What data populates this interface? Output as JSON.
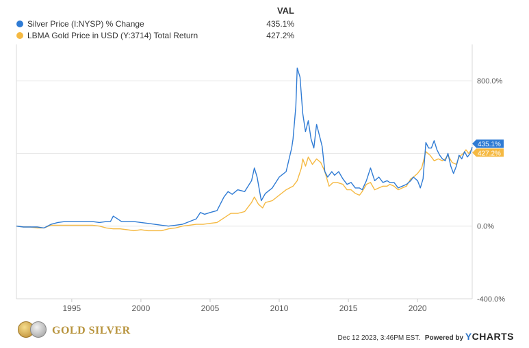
{
  "legend": {
    "header": "VAL",
    "items": [
      {
        "name": "Silver Price (I:NYSP) % Change",
        "value": "435.1%",
        "color": "#2f7bd4"
      },
      {
        "name": "LBMA Gold Price in USD (Y:3714) Total Return",
        "value": "427.2%",
        "color": "#f5b942"
      }
    ]
  },
  "chart_data": {
    "type": "line",
    "x_range": [
      1991.0,
      2023.95
    ],
    "y_range": [
      -400,
      1000
    ],
    "x_ticks": [
      {
        "value": 1995,
        "label": "1995"
      },
      {
        "value": 2000,
        "label": "2000"
      },
      {
        "value": 2005,
        "label": "2005"
      },
      {
        "value": 2010,
        "label": "2010"
      },
      {
        "value": 2015,
        "label": "2015"
      },
      {
        "value": 2020,
        "label": "2020"
      }
    ],
    "y_ticks": [
      {
        "value": 800,
        "label": "800.0%"
      },
      {
        "value": 400,
        "label": ""
      },
      {
        "value": 0,
        "label": "0.0%"
      },
      {
        "value": -400,
        "label": "-400.0%"
      }
    ],
    "grid": "horizontal",
    "series": [
      {
        "name": "Silver Price (I:NYSP) % Change",
        "color": "#2f7bd4",
        "end_label": "435.1%",
        "points": [
          [
            1991.0,
            0
          ],
          [
            1991.5,
            -5
          ],
          [
            1992.0,
            -5
          ],
          [
            1992.5,
            -5
          ],
          [
            1993.0,
            -10
          ],
          [
            1993.5,
            10
          ],
          [
            1994.0,
            20
          ],
          [
            1994.5,
            25
          ],
          [
            1995.0,
            25
          ],
          [
            1995.5,
            25
          ],
          [
            1996.0,
            25
          ],
          [
            1996.5,
            25
          ],
          [
            1997.0,
            20
          ],
          [
            1997.5,
            25
          ],
          [
            1997.8,
            25
          ],
          [
            1998.0,
            55
          ],
          [
            1998.3,
            40
          ],
          [
            1998.6,
            25
          ],
          [
            1999.0,
            25
          ],
          [
            1999.5,
            25
          ],
          [
            2000.0,
            20
          ],
          [
            2000.5,
            15
          ],
          [
            2001.0,
            10
          ],
          [
            2001.5,
            5
          ],
          [
            2002.0,
            0
          ],
          [
            2002.5,
            5
          ],
          [
            2003.0,
            10
          ],
          [
            2003.5,
            25
          ],
          [
            2004.0,
            40
          ],
          [
            2004.3,
            75
          ],
          [
            2004.6,
            65
          ],
          [
            2005.0,
            75
          ],
          [
            2005.5,
            85
          ],
          [
            2006.0,
            160
          ],
          [
            2006.3,
            190
          ],
          [
            2006.6,
            175
          ],
          [
            2007.0,
            200
          ],
          [
            2007.5,
            190
          ],
          [
            2008.0,
            250
          ],
          [
            2008.2,
            320
          ],
          [
            2008.4,
            270
          ],
          [
            2008.7,
            140
          ],
          [
            2009.0,
            180
          ],
          [
            2009.5,
            210
          ],
          [
            2010.0,
            270
          ],
          [
            2010.5,
            300
          ],
          [
            2010.9,
            430
          ],
          [
            2011.0,
            480
          ],
          [
            2011.2,
            660
          ],
          [
            2011.3,
            870
          ],
          [
            2011.5,
            820
          ],
          [
            2011.7,
            620
          ],
          [
            2011.9,
            520
          ],
          [
            2012.1,
            580
          ],
          [
            2012.3,
            480
          ],
          [
            2012.5,
            430
          ],
          [
            2012.7,
            560
          ],
          [
            2012.9,
            500
          ],
          [
            2013.1,
            440
          ],
          [
            2013.3,
            300
          ],
          [
            2013.5,
            270
          ],
          [
            2013.8,
            300
          ],
          [
            2014.0,
            280
          ],
          [
            2014.3,
            300
          ],
          [
            2014.6,
            260
          ],
          [
            2014.9,
            230
          ],
          [
            2015.2,
            240
          ],
          [
            2015.5,
            210
          ],
          [
            2015.8,
            210
          ],
          [
            2016.0,
            200
          ],
          [
            2016.3,
            250
          ],
          [
            2016.6,
            320
          ],
          [
            2016.9,
            250
          ],
          [
            2017.2,
            270
          ],
          [
            2017.5,
            240
          ],
          [
            2017.8,
            250
          ],
          [
            2018.0,
            240
          ],
          [
            2018.3,
            240
          ],
          [
            2018.6,
            210
          ],
          [
            2018.9,
            220
          ],
          [
            2019.2,
            230
          ],
          [
            2019.5,
            250
          ],
          [
            2019.7,
            270
          ],
          [
            2020.0,
            250
          ],
          [
            2020.2,
            210
          ],
          [
            2020.4,
            260
          ],
          [
            2020.6,
            460
          ],
          [
            2020.8,
            430
          ],
          [
            2021.0,
            430
          ],
          [
            2021.2,
            470
          ],
          [
            2021.4,
            420
          ],
          [
            2021.6,
            390
          ],
          [
            2021.8,
            370
          ],
          [
            2022.0,
            360
          ],
          [
            2022.2,
            400
          ],
          [
            2022.4,
            330
          ],
          [
            2022.6,
            290
          ],
          [
            2022.8,
            330
          ],
          [
            2023.0,
            390
          ],
          [
            2023.2,
            370
          ],
          [
            2023.4,
            410
          ],
          [
            2023.6,
            380
          ],
          [
            2023.8,
            400
          ],
          [
            2023.95,
            435
          ]
        ]
      },
      {
        "name": "LBMA Gold Price in USD (Y:3714) Total Return",
        "color": "#f5b942",
        "end_label": "427.2%",
        "points": [
          [
            1991.0,
            0
          ],
          [
            1991.5,
            -5
          ],
          [
            1992.0,
            -5
          ],
          [
            1992.5,
            -10
          ],
          [
            1993.0,
            -10
          ],
          [
            1993.5,
            5
          ],
          [
            1994.0,
            5
          ],
          [
            1994.5,
            5
          ],
          [
            1995.0,
            5
          ],
          [
            1995.5,
            5
          ],
          [
            1996.0,
            5
          ],
          [
            1996.5,
            5
          ],
          [
            1997.0,
            0
          ],
          [
            1997.5,
            -10
          ],
          [
            1998.0,
            -15
          ],
          [
            1998.5,
            -15
          ],
          [
            1999.0,
            -20
          ],
          [
            1999.5,
            -25
          ],
          [
            2000.0,
            -20
          ],
          [
            2000.5,
            -25
          ],
          [
            2001.0,
            -25
          ],
          [
            2001.5,
            -25
          ],
          [
            2002.0,
            -15
          ],
          [
            2002.5,
            -10
          ],
          [
            2003.0,
            0
          ],
          [
            2003.5,
            5
          ],
          [
            2004.0,
            10
          ],
          [
            2004.5,
            10
          ],
          [
            2005.0,
            15
          ],
          [
            2005.5,
            20
          ],
          [
            2006.0,
            45
          ],
          [
            2006.5,
            70
          ],
          [
            2007.0,
            70
          ],
          [
            2007.5,
            80
          ],
          [
            2008.0,
            130
          ],
          [
            2008.2,
            160
          ],
          [
            2008.5,
            120
          ],
          [
            2008.8,
            100
          ],
          [
            2009.0,
            130
          ],
          [
            2009.5,
            140
          ],
          [
            2010.0,
            170
          ],
          [
            2010.5,
            200
          ],
          [
            2011.0,
            220
          ],
          [
            2011.3,
            250
          ],
          [
            2011.6,
            320
          ],
          [
            2011.7,
            370
          ],
          [
            2011.9,
            330
          ],
          [
            2012.1,
            380
          ],
          [
            2012.4,
            340
          ],
          [
            2012.7,
            370
          ],
          [
            2013.0,
            350
          ],
          [
            2013.3,
            300
          ],
          [
            2013.6,
            220
          ],
          [
            2013.9,
            240
          ],
          [
            2014.2,
            240
          ],
          [
            2014.6,
            230
          ],
          [
            2014.9,
            200
          ],
          [
            2015.2,
            200
          ],
          [
            2015.5,
            180
          ],
          [
            2015.8,
            170
          ],
          [
            2016.0,
            190
          ],
          [
            2016.3,
            230
          ],
          [
            2016.6,
            240
          ],
          [
            2016.9,
            200
          ],
          [
            2017.2,
            210
          ],
          [
            2017.5,
            220
          ],
          [
            2017.8,
            220
          ],
          [
            2018.0,
            230
          ],
          [
            2018.3,
            220
          ],
          [
            2018.6,
            200
          ],
          [
            2018.9,
            210
          ],
          [
            2019.2,
            220
          ],
          [
            2019.5,
            260
          ],
          [
            2019.7,
            270
          ],
          [
            2020.0,
            290
          ],
          [
            2020.3,
            320
          ],
          [
            2020.6,
            410
          ],
          [
            2020.9,
            390
          ],
          [
            2021.2,
            360
          ],
          [
            2021.5,
            370
          ],
          [
            2021.8,
            360
          ],
          [
            2022.0,
            370
          ],
          [
            2022.2,
            390
          ],
          [
            2022.5,
            350
          ],
          [
            2022.8,
            340
          ],
          [
            2023.0,
            380
          ],
          [
            2023.3,
            400
          ],
          [
            2023.5,
            420
          ],
          [
            2023.7,
            400
          ],
          [
            2023.95,
            427
          ]
        ]
      }
    ]
  },
  "footer": {
    "brand": "GOLD SILVER",
    "timestamp": "Dec 12 2023, 3:46PM EST.",
    "powered_by": "Powered by",
    "ycharts_y": "Y",
    "ycharts_rest": "CHARTS"
  }
}
